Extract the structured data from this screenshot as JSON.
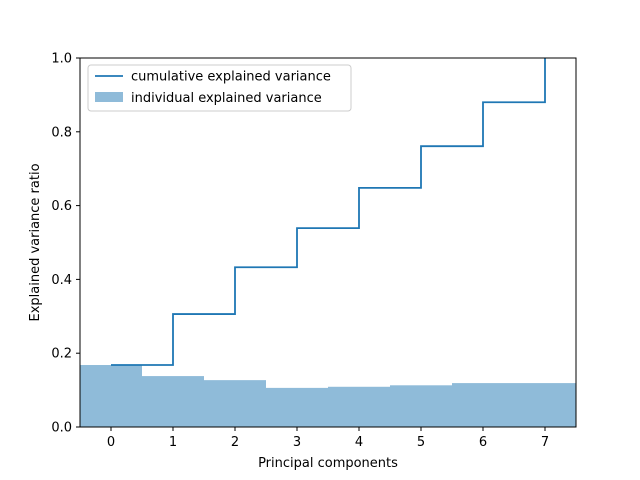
{
  "chart_data": {
    "type": "bar",
    "title": "",
    "xlabel": "Principal components",
    "ylabel": "Explained variance ratio",
    "categories": [
      0,
      1,
      2,
      3,
      4,
      5,
      6,
      7
    ],
    "xlim": [
      -0.5,
      7.5
    ],
    "ylim": [
      0,
      1.0
    ],
    "xticks": [
      "0",
      "1",
      "2",
      "3",
      "4",
      "5",
      "6",
      "7"
    ],
    "yticks": [
      "0.0",
      "0.2",
      "0.4",
      "0.6",
      "0.8",
      "1.0"
    ],
    "grid": false,
    "legend_position": "top-left",
    "series": [
      {
        "name": "individual explained variance",
        "type": "bar",
        "color": "#1f77b4",
        "alpha": 0.5,
        "values": [
          0.168,
          0.138,
          0.127,
          0.106,
          0.109,
          0.113,
          0.119,
          0.119
        ]
      },
      {
        "name": "cumulative explained variance",
        "type": "step",
        "color": "#1f77b4",
        "values": [
          0.168,
          0.306,
          0.433,
          0.539,
          0.648,
          0.761,
          0.88,
          1.0
        ]
      }
    ]
  }
}
